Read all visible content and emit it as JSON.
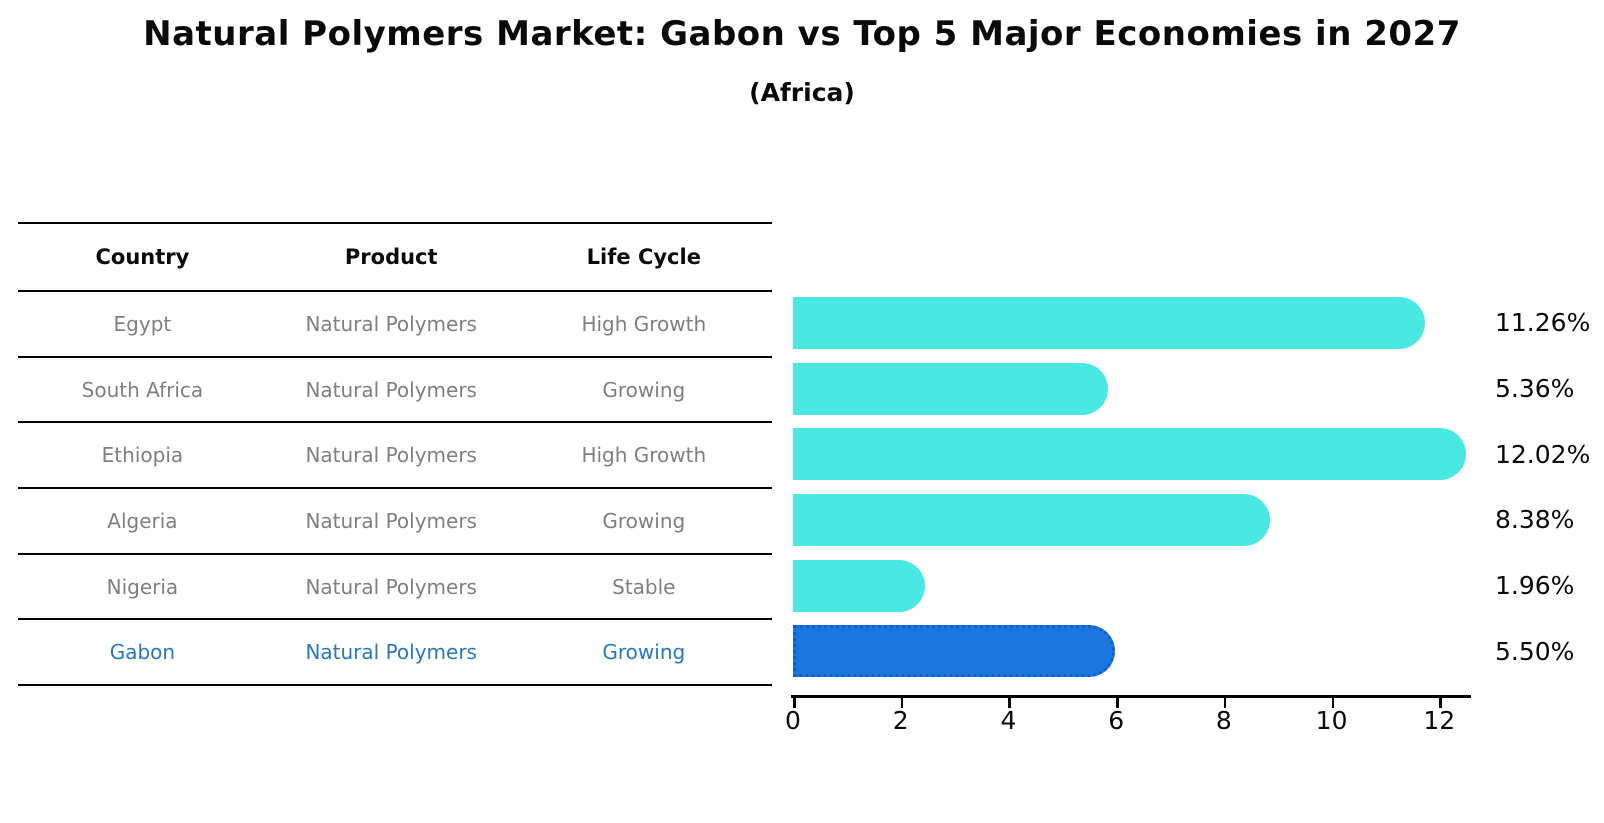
{
  "title": "Natural Polymers Market: Gabon vs Top 5 Major Economies in 2027",
  "subtitle": "(Africa)",
  "table": {
    "headers": [
      "Country",
      "Product",
      "Life Cycle"
    ],
    "rows": [
      {
        "country": "Egypt",
        "product": "Natural Polymers",
        "life_cycle": "High Growth",
        "highlight": false
      },
      {
        "country": "South Africa",
        "product": "Natural Polymers",
        "life_cycle": "Growing",
        "highlight": false
      },
      {
        "country": "Ethiopia",
        "product": "Natural Polymers",
        "life_cycle": "High Growth",
        "highlight": false
      },
      {
        "country": "Algeria",
        "product": "Natural Polymers",
        "life_cycle": "Growing",
        "highlight": false
      },
      {
        "country": "Nigeria",
        "product": "Natural Polymers",
        "life_cycle": "Stable",
        "highlight": false
      },
      {
        "country": "Gabon",
        "product": "Natural Polymers",
        "life_cycle": "Growing",
        "highlight": true
      }
    ]
  },
  "chart_data": {
    "type": "bar",
    "orientation": "horizontal",
    "title": "Natural Polymers Market: Gabon vs Top 5 Major Economies in 2027",
    "subtitle": "(Africa)",
    "categories": [
      "Egypt",
      "South Africa",
      "Ethiopia",
      "Algeria",
      "Nigeria",
      "Gabon"
    ],
    "values": [
      11.26,
      5.36,
      12.02,
      8.38,
      1.96,
      5.5
    ],
    "value_labels": [
      "11.26%",
      "5.36%",
      "12.02%",
      "8.38%",
      "1.96%",
      "5.50%"
    ],
    "x_ticks": [
      0,
      2,
      4,
      6,
      8,
      10,
      12
    ],
    "xlim": [
      0,
      12.57
    ],
    "grid": false,
    "legend": "none",
    "highlight_index": 5,
    "colors": {
      "bar_default": "#4ae8e2",
      "bar_highlight": "#1c76df",
      "bar_highlight_border": "#0f5ec9",
      "row_text": "#7f7f7f",
      "row_highlight_text": "#2878be",
      "axis": "#000000"
    }
  }
}
